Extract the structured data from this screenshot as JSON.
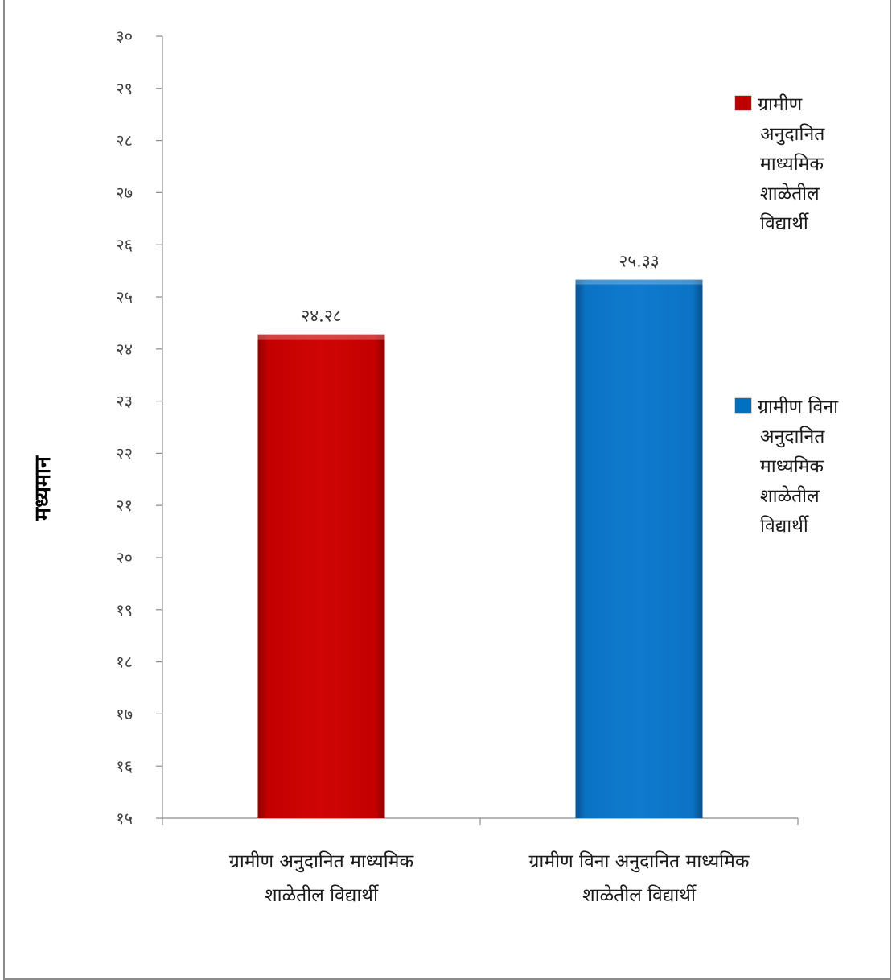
{
  "chart_data": {
    "type": "bar",
    "title": "",
    "xlabel": "",
    "ylabel": "मध्यमान",
    "ylim": [
      15,
      30
    ],
    "y_ticks": [
      15,
      16,
      17,
      18,
      19,
      20,
      21,
      22,
      23,
      24,
      25,
      26,
      27,
      28,
      29,
      30
    ],
    "y_tick_labels": [
      "१५",
      "१६",
      "१७",
      "१८",
      "१९",
      "२०",
      "२१",
      "२२",
      "२३",
      "२४",
      "२५",
      "२६",
      "२७",
      "२८",
      "२९",
      "३०"
    ],
    "grid": false,
    "legend_position": "right",
    "categories": [
      [
        "ग्रामीण अनुदानित माध्यमिक",
        "शाळेतील विद्यार्थी"
      ],
      [
        "ग्रामीण विना अनुदानित माध्यमिक",
        "शाळेतील विद्यार्थी"
      ]
    ],
    "values": [
      24.28,
      25.33
    ],
    "value_labels": [
      "२४.२८",
      "२५.३३"
    ],
    "bar_colors": [
      "#c00000",
      "#0070c0"
    ],
    "legend": [
      {
        "color": "#c00000",
        "lines": [
          "ग्रामीण",
          "अनुदानित",
          "माध्यमिक",
          "शाळेतील",
          "विद्यार्थी"
        ]
      },
      {
        "color": "#0070c0",
        "lines": [
          "ग्रामीण विना",
          "अनुदानित",
          "माध्यमिक",
          "शाळेतील",
          "विद्यार्थी"
        ]
      }
    ]
  }
}
